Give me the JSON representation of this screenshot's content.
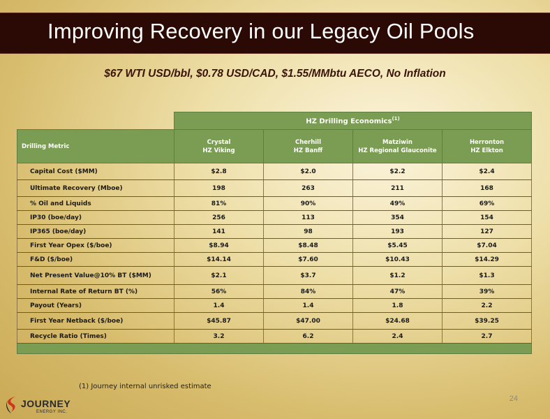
{
  "title": "Improving Recovery in our Legacy Oil Pools",
  "subtitle": "$67 WTI USD/bbl, $0.78 USD/CAD, $1.55/MMbtu  AECO, No Inflation",
  "table": {
    "group_header": "HZ Drilling Economics",
    "group_header_note": "(1)",
    "metric_header": "Drilling Metric",
    "columns": [
      {
        "line1": "Crystal",
        "line2": "HZ Viking"
      },
      {
        "line1": "Cherhill",
        "line2": "HZ Banff"
      },
      {
        "line1": "Matziwin",
        "line2": "HZ Regional Glauconite"
      },
      {
        "line1": "Herronton",
        "line2": "HZ Elkton"
      }
    ],
    "rows": [
      {
        "label": "Capital Cost ($MM)",
        "values": [
          "$2.8",
          "$2.0",
          "$2.2",
          "$2.4"
        ]
      },
      {
        "label": "Ultimate Recovery (Mboe)",
        "values": [
          "198",
          "263",
          "211",
          "168"
        ]
      },
      {
        "label": "% Oil and Liquids",
        "values": [
          "81%",
          "90%",
          "49%",
          "69%"
        ]
      },
      {
        "label": "IP30 (boe/day)",
        "values": [
          "256",
          "113",
          "354",
          "154"
        ]
      },
      {
        "label": "IP365 (boe/day)",
        "values": [
          "141",
          "98",
          "193",
          "127"
        ]
      },
      {
        "label": "First Year Opex ($/boe)",
        "values": [
          "$8.94",
          "$8.48",
          "$5.45",
          "$7.04"
        ]
      },
      {
        "label": "F&D ($/boe)",
        "values": [
          "$14.14",
          "$7.60",
          "$10.43",
          "$14.29"
        ]
      },
      {
        "label": "Net Present Value@10% BT ($MM)",
        "values": [
          "$2.1",
          "$3.7",
          "$1.2",
          "$1.3"
        ]
      },
      {
        "label": "Internal Rate of Return BT (%)",
        "values": [
          "56%",
          "84%",
          "47%",
          "39%"
        ]
      },
      {
        "label": "Payout (Years)",
        "values": [
          "1.4",
          "1.4",
          "1.8",
          "2.2"
        ]
      },
      {
        "label": "First Year Netback ($/boe)",
        "values": [
          "$45.87",
          "$47.00",
          "$24.68",
          "$39.25"
        ]
      },
      {
        "label": "Recycle Ratio (Times)",
        "values": [
          "3.2",
          "6.2",
          "2.4",
          "2.7"
        ]
      }
    ]
  },
  "footnote": "(1)  Journey internal unrisked estimate",
  "page_number": "24",
  "logo": {
    "name": "JOURNEY",
    "tagline": "ENERGY INC.",
    "icon": "journey-swirl-logo-icon"
  },
  "colors": {
    "title_bar": "#2b0a05",
    "table_header": "#7b9c53",
    "subtitle_text": "#3a1408",
    "logo_accent": "#d0341c"
  }
}
